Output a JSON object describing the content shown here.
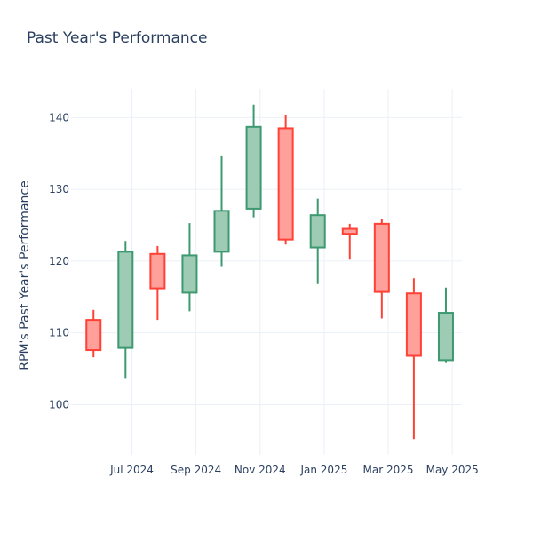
{
  "title": "Past Year's Performance",
  "chart_data": {
    "type": "candlestick",
    "title": "Past Year's Performance",
    "xlabel": "",
    "ylabel": "RPM's Past Year's Performance",
    "ylim": [
      93,
      144
    ],
    "y_ticks": [
      100,
      110,
      120,
      130,
      140
    ],
    "x_ticks": [
      {
        "month": 1.2,
        "label": "Jul 2024"
      },
      {
        "month": 3.2,
        "label": "Sep 2024"
      },
      {
        "month": 5.2,
        "label": "Nov 2024"
      },
      {
        "month": 7.2,
        "label": "Jan 2025"
      },
      {
        "month": 9.2,
        "label": "Mar 2025"
      },
      {
        "month": 11.2,
        "label": "May 2025"
      }
    ],
    "grid": true,
    "increasing_color": "#3d9970",
    "increasing_fill": "#9ecbb4",
    "decreasing_color": "#ff4136",
    "decreasing_fill": "#ffa09b",
    "candles": [
      {
        "month": 0,
        "date": "Jun 2024",
        "open": 111.8,
        "high": 113.2,
        "low": 106.6,
        "close": 107.6
      },
      {
        "month": 1,
        "date": "Jul 2024",
        "open": 107.9,
        "high": 122.8,
        "low": 103.6,
        "close": 121.3
      },
      {
        "month": 2,
        "date": "Aug 2024",
        "open": 121.0,
        "high": 122.1,
        "low": 111.8,
        "close": 116.2
      },
      {
        "month": 3,
        "date": "Sep 2024",
        "open": 115.6,
        "high": 125.3,
        "low": 113.0,
        "close": 120.8
      },
      {
        "month": 4,
        "date": "Oct 2024",
        "open": 121.3,
        "high": 134.6,
        "low": 119.3,
        "close": 127.0
      },
      {
        "month": 5,
        "date": "Nov 2024",
        "open": 127.3,
        "high": 141.8,
        "low": 126.1,
        "close": 138.7
      },
      {
        "month": 6,
        "date": "Dec 2024",
        "open": 138.5,
        "high": 140.4,
        "low": 122.3,
        "close": 123.0
      },
      {
        "month": 7,
        "date": "Jan 2025",
        "open": 121.9,
        "high": 128.7,
        "low": 116.8,
        "close": 126.4
      },
      {
        "month": 8,
        "date": "Feb 2025",
        "open": 124.5,
        "high": 125.2,
        "low": 120.2,
        "close": 123.8
      },
      {
        "month": 9,
        "date": "Mar 2025",
        "open": 125.2,
        "high": 125.8,
        "low": 112.0,
        "close": 115.7
      },
      {
        "month": 10,
        "date": "Apr 2025",
        "open": 115.5,
        "high": 117.6,
        "low": 95.2,
        "close": 106.8
      },
      {
        "month": 11,
        "date": "May 2025",
        "open": 106.2,
        "high": 116.3,
        "low": 105.8,
        "close": 112.8
      }
    ]
  }
}
